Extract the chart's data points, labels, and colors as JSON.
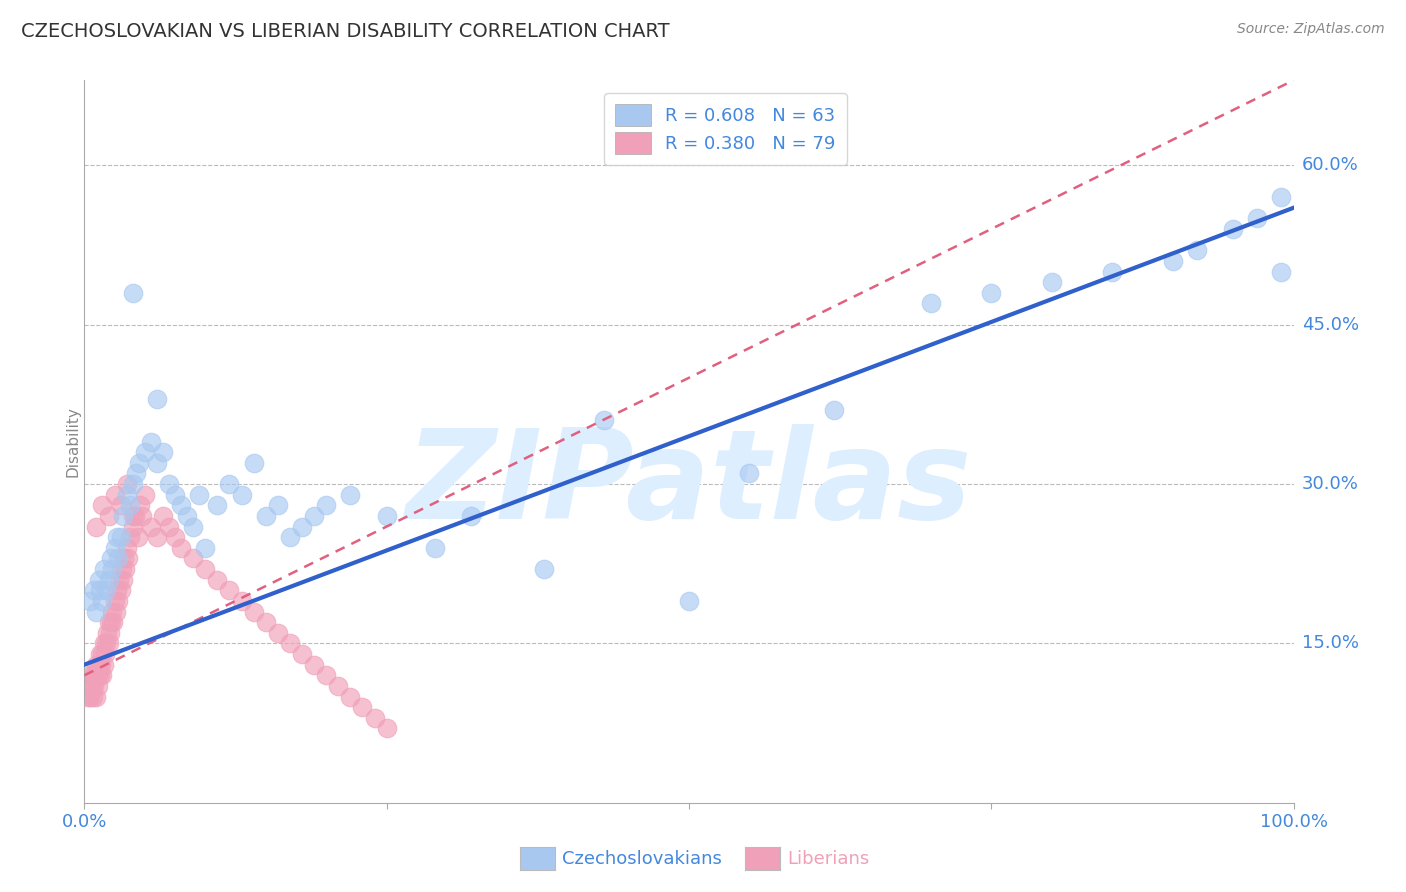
{
  "title": "CZECHOSLOVAKIAN VS LIBERIAN DISABILITY CORRELATION CHART",
  "source": "Source: ZipAtlas.com",
  "xlabel_blue": "Czechoslovakians",
  "xlabel_pink": "Liberians",
  "ylabel": "Disability",
  "xlim": [
    0.0,
    1.0
  ],
  "ylim": [
    0.0,
    0.68
  ],
  "yticks": [
    0.15,
    0.3,
    0.45,
    0.6
  ],
  "ytick_labels": [
    "15.0%",
    "30.0%",
    "45.0%",
    "60.0%"
  ],
  "R_blue": 0.608,
  "N_blue": 63,
  "R_pink": 0.38,
  "N_pink": 79,
  "blue_color": "#A8C8F0",
  "pink_color": "#F0A0B8",
  "blue_line_color": "#3060CC",
  "pink_line_color": "#E06080",
  "grid_color": "#BBBBBB",
  "title_color": "#333333",
  "axis_label_color": "#4488DD",
  "watermark_color": "#DDEEFF",
  "watermark_text": "ZIPatlas",
  "blue_line_x0": 0.0,
  "blue_line_y0": 0.13,
  "blue_line_x1": 1.0,
  "blue_line_y1": 0.56,
  "pink_line_x0": 0.0,
  "pink_line_y0": 0.12,
  "pink_line_x1": 1.0,
  "pink_line_y1": 0.68,
  "blue_points_x": [
    0.005,
    0.008,
    0.01,
    0.012,
    0.013,
    0.015,
    0.016,
    0.018,
    0.02,
    0.022,
    0.023,
    0.025,
    0.027,
    0.028,
    0.03,
    0.032,
    0.035,
    0.038,
    0.04,
    0.043,
    0.045,
    0.05,
    0.055,
    0.06,
    0.065,
    0.07,
    0.075,
    0.08,
    0.085,
    0.09,
    0.095,
    0.1,
    0.11,
    0.12,
    0.13,
    0.14,
    0.15,
    0.16,
    0.17,
    0.18,
    0.19,
    0.2,
    0.22,
    0.25,
    0.29,
    0.32,
    0.38,
    0.43,
    0.5,
    0.55,
    0.62,
    0.7,
    0.75,
    0.8,
    0.85,
    0.9,
    0.92,
    0.95,
    0.97,
    0.99,
    0.04,
    0.06,
    0.99
  ],
  "blue_points_y": [
    0.19,
    0.2,
    0.18,
    0.21,
    0.2,
    0.19,
    0.22,
    0.2,
    0.21,
    0.23,
    0.22,
    0.24,
    0.25,
    0.23,
    0.25,
    0.27,
    0.29,
    0.28,
    0.3,
    0.31,
    0.32,
    0.33,
    0.34,
    0.32,
    0.33,
    0.3,
    0.29,
    0.28,
    0.27,
    0.26,
    0.29,
    0.24,
    0.28,
    0.3,
    0.29,
    0.32,
    0.27,
    0.28,
    0.25,
    0.26,
    0.27,
    0.28,
    0.29,
    0.27,
    0.24,
    0.27,
    0.22,
    0.36,
    0.19,
    0.31,
    0.37,
    0.47,
    0.48,
    0.49,
    0.5,
    0.51,
    0.52,
    0.54,
    0.55,
    0.57,
    0.48,
    0.38,
    0.5
  ],
  "pink_points_x": [
    0.003,
    0.004,
    0.005,
    0.005,
    0.006,
    0.007,
    0.007,
    0.008,
    0.009,
    0.01,
    0.01,
    0.011,
    0.011,
    0.012,
    0.013,
    0.013,
    0.014,
    0.015,
    0.015,
    0.016,
    0.016,
    0.017,
    0.018,
    0.019,
    0.02,
    0.02,
    0.021,
    0.022,
    0.023,
    0.024,
    0.025,
    0.026,
    0.027,
    0.028,
    0.029,
    0.03,
    0.031,
    0.032,
    0.033,
    0.034,
    0.035,
    0.036,
    0.038,
    0.04,
    0.042,
    0.044,
    0.046,
    0.048,
    0.05,
    0.055,
    0.06,
    0.065,
    0.07,
    0.075,
    0.08,
    0.09,
    0.1,
    0.11,
    0.12,
    0.13,
    0.14,
    0.15,
    0.16,
    0.17,
    0.18,
    0.19,
    0.2,
    0.21,
    0.22,
    0.23,
    0.24,
    0.25,
    0.01,
    0.015,
    0.02,
    0.025,
    0.03,
    0.035,
    0.04
  ],
  "pink_points_y": [
    0.1,
    0.11,
    0.12,
    0.1,
    0.11,
    0.12,
    0.1,
    0.11,
    0.12,
    0.1,
    0.13,
    0.11,
    0.12,
    0.13,
    0.14,
    0.12,
    0.13,
    0.14,
    0.12,
    0.15,
    0.13,
    0.14,
    0.15,
    0.16,
    0.15,
    0.17,
    0.16,
    0.17,
    0.18,
    0.17,
    0.19,
    0.18,
    0.2,
    0.19,
    0.21,
    0.2,
    0.22,
    0.21,
    0.23,
    0.22,
    0.24,
    0.23,
    0.25,
    0.26,
    0.27,
    0.25,
    0.28,
    0.27,
    0.29,
    0.26,
    0.25,
    0.27,
    0.26,
    0.25,
    0.24,
    0.23,
    0.22,
    0.21,
    0.2,
    0.19,
    0.18,
    0.17,
    0.16,
    0.15,
    0.14,
    0.13,
    0.12,
    0.11,
    0.1,
    0.09,
    0.08,
    0.07,
    0.26,
    0.28,
    0.27,
    0.29,
    0.28,
    0.3,
    0.27
  ]
}
